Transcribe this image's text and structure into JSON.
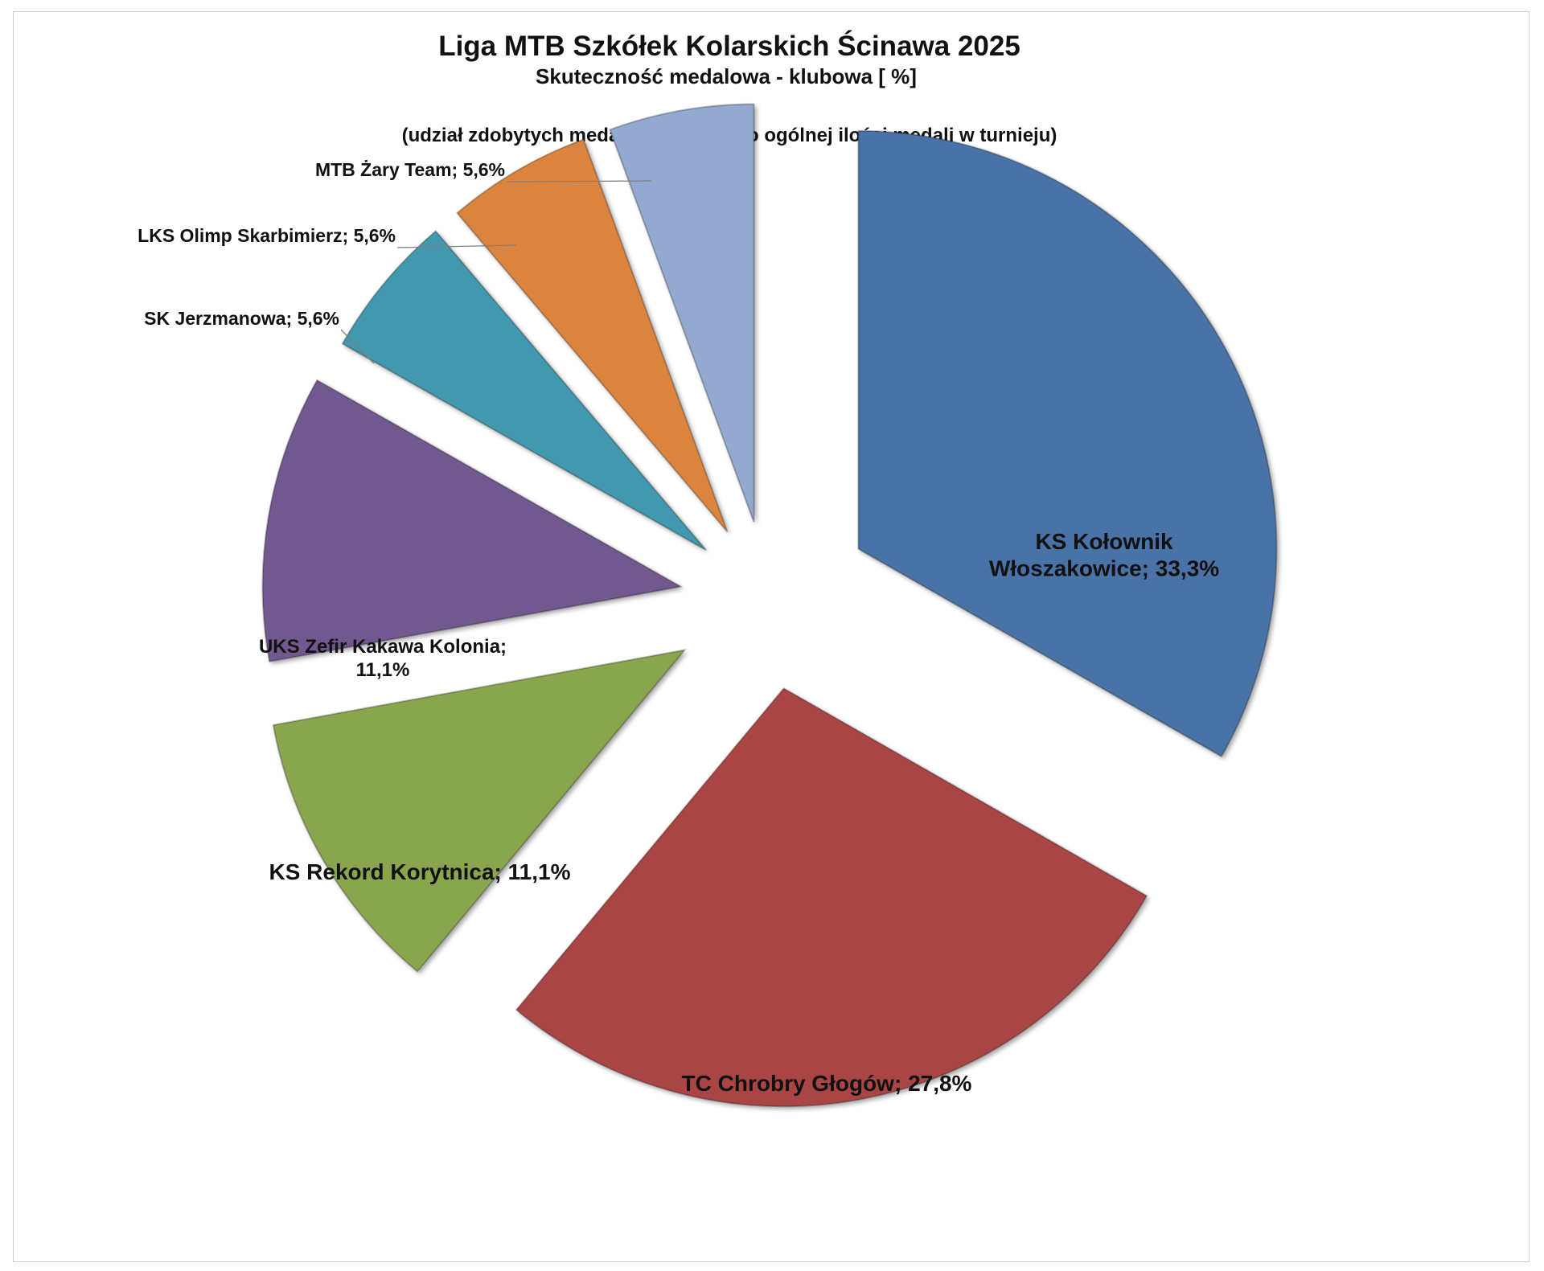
{
  "chart_data": {
    "type": "pie",
    "title": "Liga MTB Szkółek Kolarskich Ścinawa 2025",
    "subtitle": "Skuteczność medalowa - klubowa [ %]",
    "note": "(udział zdobytych medali przez klub do ogólnej ilości medali w turnieju)",
    "exploded": true,
    "slices": [
      {
        "label": "KS Kołownik Włoszakowice; 33,3%",
        "lines": [
          "KS Kołownik",
          "Włoszakowice; 33,3%"
        ],
        "value": 33.3,
        "color": "#4872a7"
      },
      {
        "label": "TC Chrobry Głogów; 27,8%",
        "lines": [
          "TC Chrobry Głogów; 27,8%"
        ],
        "value": 27.8,
        "color": "#aa4544"
      },
      {
        "label": "KS Rekord Korytnica; 11,1%",
        "lines": [
          "KS Rekord Korytnica; 11,1%"
        ],
        "value": 11.1,
        "color": "#89a54e"
      },
      {
        "label": "UKS Zefir Kakawa Kolonia; 11,1%",
        "lines": [
          "UKS Zefir Kakawa Kolonia;",
          "11,1%"
        ],
        "value": 11.1,
        "color": "#71588f"
      },
      {
        "label": "SK Jerzmanowa; 5,6%",
        "lines": [
          "SK Jerzmanowa; 5,6%"
        ],
        "value": 5.6,
        "color": "#4298af"
      },
      {
        "label": "LKS Olimp Skarbimierz; 5,6%",
        "lines": [
          "LKS Olimp Skarbimierz; 5,6%"
        ],
        "value": 5.6,
        "color": "#db843d"
      },
      {
        "label": "MTB Żary Team; 5,6%",
        "lines": [
          "MTB Żary Team; 5,6%"
        ],
        "value": 5.6,
        "color": "#93a9cf"
      }
    ]
  }
}
